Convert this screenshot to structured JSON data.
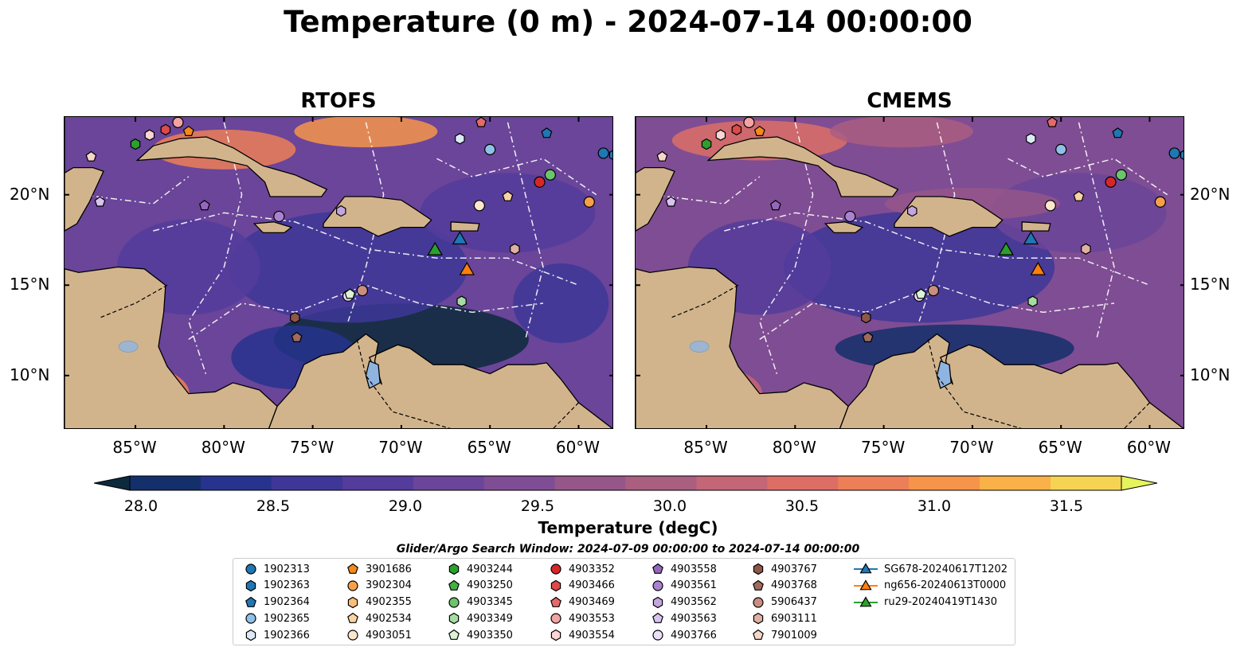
{
  "title": "Temperature (0 m) - 2024-07-14 00:00:00",
  "panels": [
    {
      "name": "RTOFS"
    },
    {
      "name": "CMEMS"
    }
  ],
  "map_extent": {
    "lon": [
      -89,
      -58
    ],
    "lat": [
      7,
      24.3
    ]
  },
  "lon_ticks": [
    "85°W",
    "80°W",
    "75°W",
    "70°W",
    "65°W",
    "60°W"
  ],
  "lat_ticks": [
    "20°N",
    "15°N",
    "10°N"
  ],
  "colorbar": {
    "label": "Temperature (degC)",
    "ticks": [
      "28.0",
      "28.5",
      "29.0",
      "29.5",
      "30.0",
      "30.5",
      "31.0",
      "31.5"
    ],
    "range": [
      28.0,
      31.5
    ],
    "colors": [
      "#0c2a3c",
      "#13306b",
      "#27338d",
      "#3e3798",
      "#533c9b",
      "#6a4599",
      "#7f4d93",
      "#955689",
      "#aa5e80",
      "#c36676",
      "#dc6e66",
      "#ec7f57",
      "#f6954a",
      "#fab248",
      "#f6d453",
      "#e6f45c"
    ]
  },
  "legend_title": "Glider/Argo Search Window: 2024-07-09 00:00:00 to 2024-07-14 00:00:00",
  "legend": [
    {
      "label": "1902313",
      "marker": "circle",
      "color": "#1f77b4"
    },
    {
      "label": "1902363",
      "marker": "hexagon",
      "color": "#1f77b4"
    },
    {
      "label": "1902364",
      "marker": "pentagon",
      "color": "#1f77b4"
    },
    {
      "label": "1902365",
      "marker": "circle",
      "color": "#8fc1e8"
    },
    {
      "label": "1902366",
      "marker": "hexagon",
      "color": "#dceaf8"
    },
    {
      "label": "3901686",
      "marker": "pentagon",
      "color": "#f28a1c"
    },
    {
      "label": "3902304",
      "marker": "circle",
      "color": "#f7a04a"
    },
    {
      "label": "4902355",
      "marker": "hexagon",
      "color": "#fbbd7a"
    },
    {
      "label": "4902534",
      "marker": "pentagon",
      "color": "#fcd2a4"
    },
    {
      "label": "4903051",
      "marker": "circle",
      "color": "#fde6cc"
    },
    {
      "label": "4903244",
      "marker": "hexagon",
      "color": "#2ca02c"
    },
    {
      "label": "4903250",
      "marker": "pentagon",
      "color": "#45b045"
    },
    {
      "label": "4903345",
      "marker": "circle",
      "color": "#6cc46c"
    },
    {
      "label": "4903349",
      "marker": "hexagon",
      "color": "#a6dca0"
    },
    {
      "label": "4903350",
      "marker": "pentagon",
      "color": "#dcf2d6"
    },
    {
      "label": "4903352",
      "marker": "circle",
      "color": "#d62728"
    },
    {
      "label": "4903466",
      "marker": "hexagon",
      "color": "#dc4a4a"
    },
    {
      "label": "4903469",
      "marker": "pentagon",
      "color": "#e36a6a"
    },
    {
      "label": "4903553",
      "marker": "circle",
      "color": "#f2a3a3"
    },
    {
      "label": "4903554",
      "marker": "hexagon",
      "color": "#fbd4d4"
    },
    {
      "label": "4903558",
      "marker": "pentagon",
      "color": "#9467bd"
    },
    {
      "label": "4903561",
      "marker": "circle",
      "color": "#a983cf"
    },
    {
      "label": "4903562",
      "marker": "hexagon",
      "color": "#c3a5df"
    },
    {
      "label": "4903563",
      "marker": "pentagon",
      "color": "#d9c3ef"
    },
    {
      "label": "4903766",
      "marker": "circle",
      "color": "#ecdffa"
    },
    {
      "label": "4903767",
      "marker": "hexagon",
      "color": "#8c564b"
    },
    {
      "label": "4903768",
      "marker": "pentagon",
      "color": "#a06a5e"
    },
    {
      "label": "5906437",
      "marker": "circle",
      "color": "#c98e80"
    },
    {
      "label": "6903111",
      "marker": "hexagon",
      "color": "#dfb0a4"
    },
    {
      "label": "7901009",
      "marker": "pentagon",
      "color": "#f6d5cb"
    },
    {
      "label": "SG678-20240617T1202",
      "marker": "triangle",
      "color": "#1f77b4"
    },
    {
      "label": "ng656-20240613T0000",
      "marker": "triangle",
      "color": "#ff7f0e"
    },
    {
      "label": "ru29-20240419T1430",
      "marker": "triangle",
      "color": "#2ca02c"
    }
  ],
  "platform_positions": [
    {
      "id": "1902313",
      "lon": -58.6,
      "lat": 22.3
    },
    {
      "id": "1902363",
      "lon": -58.0,
      "lat": 22.2
    },
    {
      "id": "1902364",
      "lon": -61.8,
      "lat": 23.4
    },
    {
      "id": "1902365",
      "lon": -65.0,
      "lat": 22.5
    },
    {
      "id": "1902366",
      "lon": -66.7,
      "lat": 23.1
    },
    {
      "id": "4903767",
      "lon": -76.0,
      "lat": 13.2
    },
    {
      "id": "4903768",
      "lon": -75.9,
      "lat": 12.1
    },
    {
      "id": "4903244",
      "lon": -85.0,
      "lat": 22.8
    },
    {
      "id": "4903352",
      "lon": -62.2,
      "lat": 20.7
    },
    {
      "id": "4903345",
      "lon": -61.6,
      "lat": 21.1
    },
    {
      "id": "3902304",
      "lon": -59.4,
      "lat": 19.6
    },
    {
      "id": "4902534",
      "lon": -64.0,
      "lat": 19.9
    },
    {
      "id": "4903051",
      "lon": -65.6,
      "lat": 19.4
    },
    {
      "id": "4903558",
      "lon": -81.1,
      "lat": 19.4
    },
    {
      "id": "4903561",
      "lon": -76.9,
      "lat": 18.8
    },
    {
      "id": "4903562",
      "lon": -73.4,
      "lat": 19.1
    },
    {
      "id": "4903563",
      "lon": -87.0,
      "lat": 19.6
    },
    {
      "id": "7901009",
      "lon": -87.5,
      "lat": 22.1
    },
    {
      "id": "4903466",
      "lon": -83.3,
      "lat": 23.6
    },
    {
      "id": "4903553",
      "lon": -82.6,
      "lat": 24.0
    },
    {
      "id": "4903554",
      "lon": -84.2,
      "lat": 23.3
    },
    {
      "id": "3901686",
      "lon": -82.0,
      "lat": 23.5
    },
    {
      "id": "6903111",
      "lon": -63.6,
      "lat": 17.0
    },
    {
      "id": "5906437",
      "lon": -72.2,
      "lat": 14.7
    },
    {
      "id": "4903766",
      "lon": -73.0,
      "lat": 14.4
    },
    {
      "id": "4903349",
      "lon": -66.6,
      "lat": 14.1
    },
    {
      "id": "4903350",
      "lon": -72.9,
      "lat": 14.5
    },
    {
      "id": "4903469",
      "lon": -65.5,
      "lat": 24.0
    }
  ],
  "glider_positions": [
    {
      "id": "SG678-20240617T1202",
      "lon": -66.7,
      "lat": 17.5
    },
    {
      "id": "ng656-20240613T0000",
      "lon": -66.3,
      "lat": 15.8
    },
    {
      "id": "ru29-20240419T1430",
      "lon": -68.1,
      "lat": 16.9
    }
  ]
}
